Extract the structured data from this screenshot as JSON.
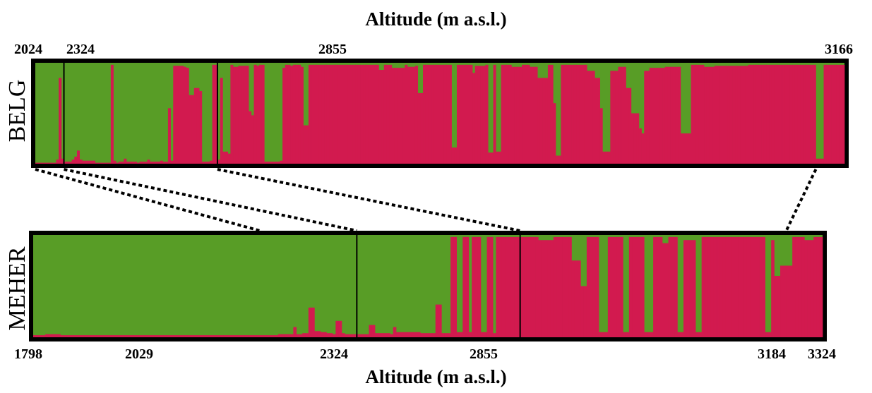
{
  "colors": {
    "cluster_a": "#589d26",
    "cluster_b": "#d21a4f",
    "frame": "#000000"
  },
  "chart_data": {
    "type": "bar",
    "title": "",
    "xlabel": "Altitude (m a.s.l.)",
    "ylabel": "",
    "ylim": [
      0,
      1
    ],
    "stacked": true,
    "panels": [
      {
        "name": "BELG",
        "tick_labels": [
          "2024",
          "2324",
          "2855",
          "3166"
        ],
        "group_boundaries": [
          11,
          70
        ],
        "values": [
          0.01,
          0.01,
          0.01,
          0.01,
          0.01,
          0.01,
          0.01,
          0.01,
          0.04,
          0.85,
          0.05,
          0.02,
          0.02,
          0.02,
          0.04,
          0.07,
          0.13,
          0.04,
          0.03,
          0.03,
          0.03,
          0.03,
          0.03,
          0.01,
          0.01,
          0.01,
          0.01,
          0.01,
          0.01,
          0.98,
          0.03,
          0.01,
          0.02,
          0.02,
          0.05,
          0.02,
          0.02,
          0.02,
          0.02,
          0.01,
          0.02,
          0.02,
          0.02,
          0.04,
          0.02,
          0.02,
          0.02,
          0.02,
          0.03,
          0.02,
          0.02,
          0.55,
          0.03,
          0.97,
          0.97,
          0.97,
          0.97,
          0.96,
          0.95,
          0.68,
          0.68,
          0.75,
          0.75,
          0.72,
          0.02,
          0.02,
          0.02,
          0.03,
          0.98,
          0.98,
          0.04,
          0.85,
          0.12,
          0.12,
          0.1,
          0.98,
          0.96,
          0.96,
          0.97,
          0.97,
          0.97,
          0.97,
          0.52,
          0.48,
          0.98,
          0.97,
          0.98,
          0.98,
          0.02,
          0.02,
          0.02,
          0.02,
          0.02,
          0.02,
          0.03,
          0.95,
          0.98,
          0.98,
          0.97,
          0.98,
          0.98,
          0.98,
          0.96,
          0.38,
          0.38,
          0.98,
          0.98,
          0.98,
          0.98,
          0.98,
          0.98,
          0.98,
          0.98,
          0.98,
          0.98,
          0.98,
          0.98,
          0.98,
          0.98,
          0.98,
          0.98,
          0.98,
          0.98,
          0.98,
          0.98,
          0.98,
          0.98,
          0.98,
          0.98,
          0.98,
          0.98,
          0.98,
          0.93,
          0.93,
          0.98,
          0.98,
          0.98,
          0.95,
          0.95,
          0.95,
          0.95,
          0.95,
          0.98,
          0.96,
          0.96,
          0.96,
          0.97,
          0.7,
          0.7,
          0.98,
          0.98,
          0.98,
          0.98,
          0.98,
          0.98,
          0.98,
          0.98,
          0.98,
          0.98,
          0.98,
          0.16,
          0.16,
          0.98,
          0.98,
          0.98,
          0.98,
          0.98,
          0.98,
          0.9,
          0.97,
          0.97,
          0.97,
          0.97,
          0.98,
          0.11,
          0.11,
          0.98,
          0.12,
          0.12,
          0.98,
          0.98,
          0.98,
          0.98,
          0.96,
          0.96,
          0.96,
          0.96,
          0.98,
          0.98,
          0.98,
          0.96,
          0.96,
          0.96,
          0.85,
          0.85,
          0.85,
          0.85,
          0.98,
          0.98,
          0.6,
          0.08,
          0.08,
          0.98,
          0.98,
          0.98,
          0.98,
          0.98,
          0.98,
          0.98,
          0.98,
          0.98,
          0.98,
          0.92,
          0.92,
          0.92,
          0.85,
          0.85,
          0.55,
          0.12,
          0.12,
          0.12,
          0.92,
          0.92,
          0.92,
          0.96,
          0.96,
          0.96,
          0.75,
          0.75,
          0.5,
          0.5,
          0.5,
          0.35,
          0.3,
          0.92,
          0.92,
          0.95,
          0.95,
          0.95,
          0.95,
          0.95,
          0.95,
          0.96,
          0.96,
          0.96,
          0.96,
          0.96,
          0.96,
          0.3,
          0.3,
          0.3,
          0.3,
          0.98,
          0.98,
          0.98,
          0.98,
          0.98,
          0.96,
          0.96,
          0.96,
          0.96,
          0.97,
          0.97,
          0.97,
          0.97,
          0.97,
          0.97,
          0.97,
          0.97,
          0.97,
          0.97,
          0.97,
          0.97,
          0.97,
          0.98,
          0.98,
          0.98,
          0.98,
          0.98,
          0.98,
          0.98,
          0.98,
          0.98,
          0.98,
          0.98,
          0.98,
          0.98,
          0.98,
          0.98,
          0.98,
          0.98,
          0.98,
          0.98,
          0.98,
          0.98,
          0.98,
          0.98,
          0.98,
          0.98,
          0.98,
          0.05,
          0.05,
          0.05,
          0.98,
          0.98,
          0.98,
          0.98,
          0.98,
          0.98,
          0.98,
          0.98
        ]
      },
      {
        "name": "MEHER",
        "tick_labels": [
          "1798",
          "2029",
          "2324",
          "2855",
          "3184",
          "3324"
        ],
        "group_boundaries": [
          107,
          161
        ],
        "values": [
          0.02,
          0.02,
          0.02,
          0.02,
          0.03,
          0.03,
          0.03,
          0.03,
          0.03,
          0.02,
          0.02,
          0.02,
          0.02,
          0.02,
          0.02,
          0.02,
          0.02,
          0.02,
          0.02,
          0.02,
          0.02,
          0.02,
          0.02,
          0.02,
          0.02,
          0.02,
          0.02,
          0.02,
          0.02,
          0.02,
          0.02,
          0.02,
          0.02,
          0.02,
          0.02,
          0.02,
          0.02,
          0.02,
          0.02,
          0.02,
          0.02,
          0.02,
          0.02,
          0.02,
          0.02,
          0.02,
          0.02,
          0.02,
          0.02,
          0.02,
          0.02,
          0.02,
          0.02,
          0.02,
          0.02,
          0.02,
          0.02,
          0.02,
          0.02,
          0.02,
          0.02,
          0.02,
          0.02,
          0.02,
          0.02,
          0.02,
          0.02,
          0.02,
          0.02,
          0.02,
          0.02,
          0.02,
          0.02,
          0.02,
          0.02,
          0.02,
          0.02,
          0.02,
          0.02,
          0.02,
          0.02,
          0.03,
          0.03,
          0.03,
          0.03,
          0.03,
          0.1,
          0.03,
          0.03,
          0.04,
          0.04,
          0.29,
          0.29,
          0.06,
          0.06,
          0.05,
          0.05,
          0.04,
          0.04,
          0.03,
          0.16,
          0.16,
          0.04,
          0.03,
          0.03,
          0.03,
          0.03,
          0.03,
          0.03,
          0.03,
          0.03,
          0.12,
          0.12,
          0.04,
          0.04,
          0.04,
          0.04,
          0.04,
          0.03,
          0.1,
          0.05,
          0.05,
          0.05,
          0.05,
          0.05,
          0.05,
          0.05,
          0.05,
          0.04,
          0.04,
          0.04,
          0.04,
          0.04,
          0.32,
          0.32,
          0.04,
          0.04,
          0.04,
          0.98,
          0.98,
          0.05,
          0.05,
          0.98,
          0.98,
          0.05,
          0.98,
          0.98,
          0.98,
          0.05,
          0.05,
          0.98,
          0.98,
          0.04,
          0.98,
          0.98,
          0.98,
          0.98,
          0.98,
          0.98,
          0.98,
          0.98,
          0.98,
          0.98,
          0.98,
          0.98,
          0.98,
          0.98,
          0.95,
          0.95,
          0.95,
          0.95,
          0.95,
          0.98,
          0.98,
          0.98,
          0.98,
          0.98,
          0.98,
          0.75,
          0.75,
          0.75,
          0.5,
          0.5,
          0.98,
          0.98,
          0.98,
          0.98,
          0.05,
          0.05,
          0.05,
          0.98,
          0.98,
          0.98,
          0.98,
          0.98,
          0.05,
          0.05,
          0.98,
          0.98,
          0.98,
          0.98,
          0.98,
          0.05,
          0.05,
          0.05,
          0.98,
          0.98,
          0.98,
          0.92,
          0.92,
          0.98,
          0.98,
          0.98,
          0.05,
          0.05,
          0.95,
          0.95,
          0.95,
          0.95,
          0.05,
          0.05,
          0.98,
          0.98,
          0.98,
          0.98,
          0.98,
          0.98,
          0.98,
          0.98,
          0.98,
          0.98,
          0.98,
          0.98,
          0.98,
          0.98,
          0.98,
          0.98,
          0.98,
          0.98,
          0.98,
          0.98,
          0.98,
          0.05,
          0.05,
          0.95,
          0.6,
          0.6,
          0.7,
          0.7,
          0.7,
          0.7,
          0.98,
          0.98,
          0.98,
          0.98,
          0.95,
          0.95,
          0.95,
          0.98,
          0.98,
          0.98
        ]
      }
    ],
    "connectors": [
      {
        "top": 0,
        "bottom": 75
      },
      {
        "top": 11,
        "bottom": 107
      },
      {
        "top": 70,
        "bottom": 161
      },
      {
        "top": 300,
        "bottom": 249
      }
    ]
  }
}
